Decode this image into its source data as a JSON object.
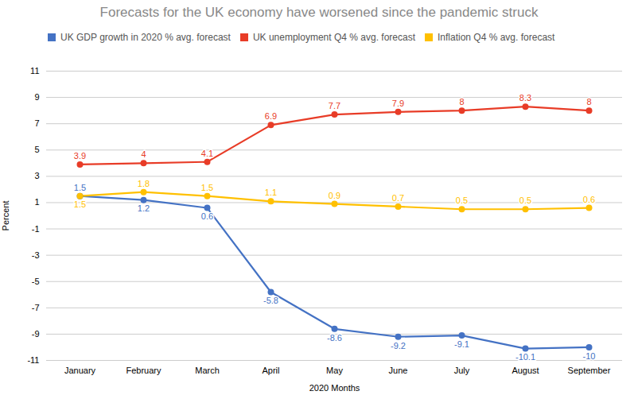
{
  "chart_data": {
    "type": "line",
    "title": "Forecasts for the UK economy have worsened since the pandemic struck",
    "xlabel": "2020 Months",
    "ylabel": "Percent",
    "categories": [
      "January",
      "February",
      "March",
      "April",
      "May",
      "June",
      "July",
      "August",
      "September"
    ],
    "series": [
      {
        "name": "UK GDP growth in 2020 % avg. forecast",
        "color": "#4472C4",
        "marker": "circle",
        "values": [
          1.5,
          1.2,
          0.6,
          -5.8,
          -8.6,
          -9.2,
          -9.1,
          -10.1,
          -10.0
        ]
      },
      {
        "name": "UK unemployment Q4 % avg. forecast",
        "color": "#E83C27",
        "marker": "circle",
        "values": [
          3.9,
          4.0,
          4.1,
          6.9,
          7.7,
          7.9,
          8.0,
          8.3,
          8.0
        ]
      },
      {
        "name": "Inflation Q4 % avg. forecast",
        "color": "#FFC000",
        "marker": "circle",
        "values": [
          1.5,
          1.8,
          1.5,
          1.1,
          0.9,
          0.7,
          0.5,
          0.5,
          0.6
        ]
      }
    ],
    "ylim": [
      -11,
      11
    ],
    "yticks": [
      -11,
      -9,
      -7,
      -5,
      -3,
      -1,
      1,
      3,
      5,
      7,
      9,
      11
    ],
    "grid": true,
    "legend": "top",
    "data_labels": true
  }
}
